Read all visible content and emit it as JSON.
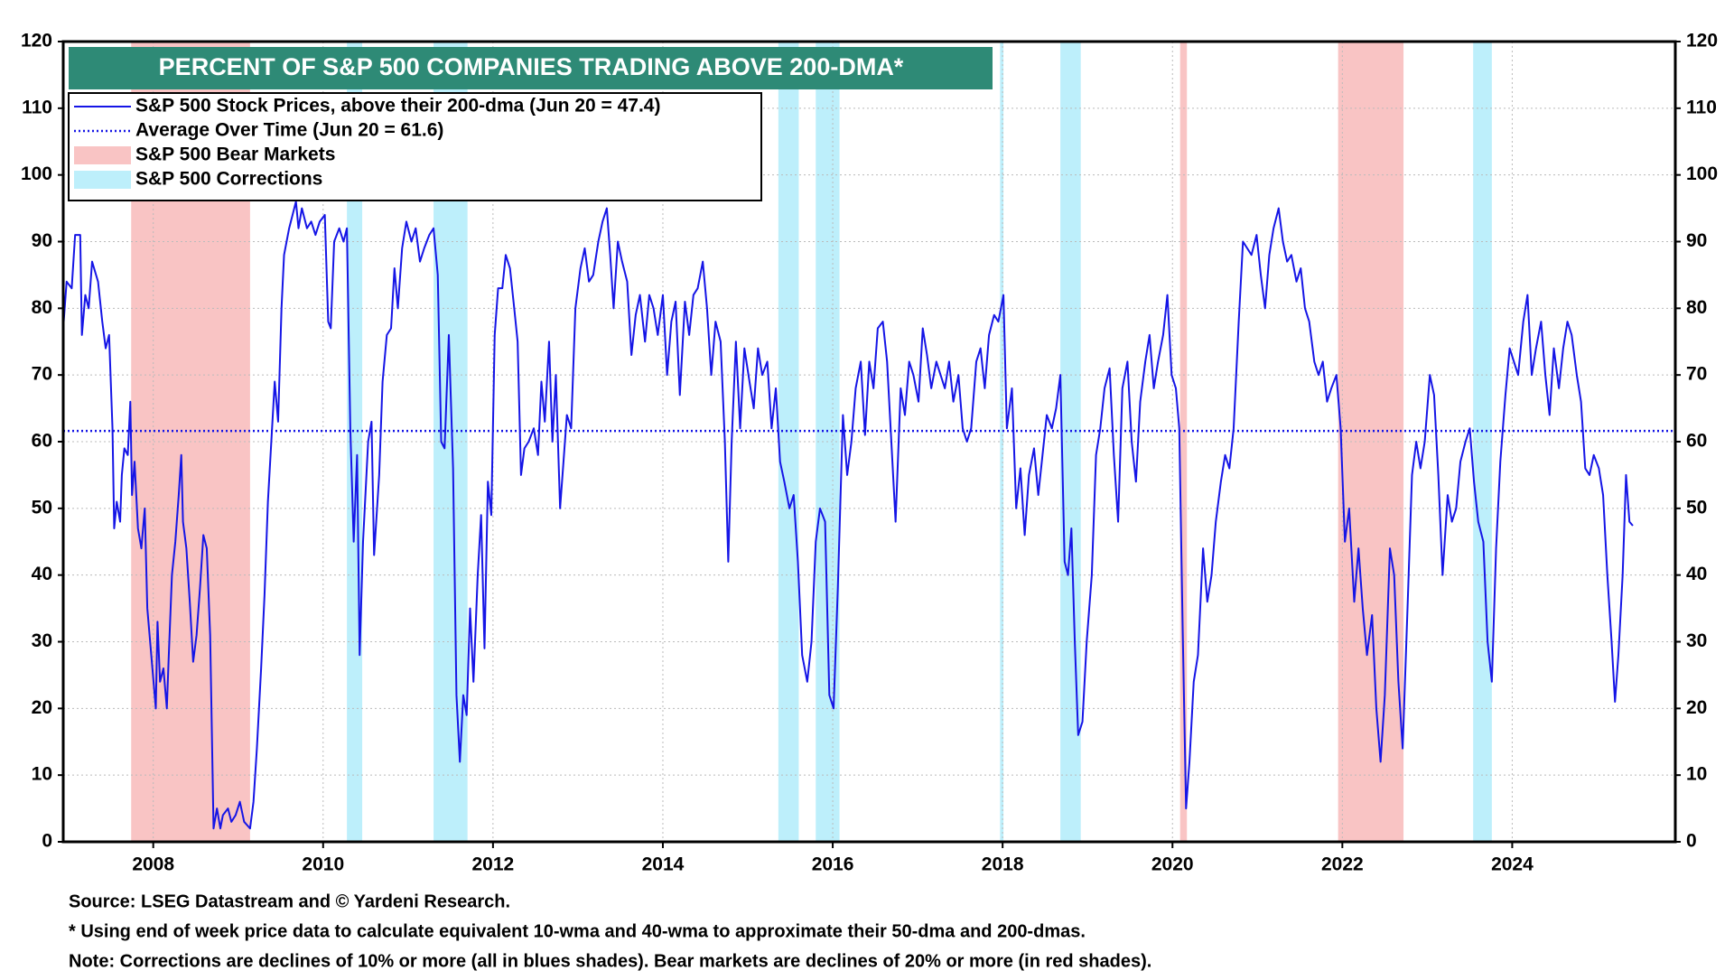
{
  "chart_data": {
    "type": "line",
    "title": "PERCENT OF S&P 500 COMPANIES TRADING ABOVE 200-DMA*",
    "x": [
      2006.94,
      2006.98,
      2007.04,
      2007.08,
      2007.14,
      2007.16,
      2007.2,
      2007.24,
      2007.28,
      2007.35,
      2007.4,
      2007.44,
      2007.48,
      2007.52,
      2007.54,
      2007.57,
      2007.61,
      2007.63,
      2007.66,
      2007.7,
      2007.73,
      2007.75,
      2007.78,
      2007.82,
      2007.86,
      2007.9,
      2007.93,
      2007.99,
      2008.03,
      2008.05,
      2008.08,
      2008.12,
      2008.16,
      2008.18,
      2008.22,
      2008.26,
      2008.3,
      2008.33,
      2008.35,
      2008.39,
      2008.43,
      2008.47,
      2008.51,
      2008.55,
      2008.59,
      2008.63,
      2008.67,
      2008.71,
      2008.75,
      2008.79,
      2008.82,
      2008.88,
      2008.92,
      2008.97,
      2009.02,
      2009.07,
      2009.14,
      2009.18,
      2009.22,
      2009.27,
      2009.31,
      2009.35,
      2009.39,
      2009.43,
      2009.47,
      2009.51,
      2009.54,
      2009.6,
      2009.64,
      2009.68,
      2009.71,
      2009.75,
      2009.81,
      2009.86,
      2009.91,
      2009.96,
      2010.02,
      2010.06,
      2010.09,
      2010.13,
      2010.19,
      2010.24,
      2010.28,
      2010.32,
      2010.36,
      2010.4,
      2010.43,
      2010.47,
      2010.53,
      2010.57,
      2010.6,
      2010.66,
      2010.7,
      2010.75,
      2010.8,
      2010.84,
      2010.88,
      2010.93,
      2010.98,
      2011.04,
      2011.09,
      2011.14,
      2011.19,
      2011.25,
      2011.3,
      2011.35,
      2011.39,
      2011.43,
      2011.48,
      2011.53,
      2011.57,
      2011.61,
      2011.65,
      2011.69,
      2011.73,
      2011.77,
      2011.82,
      2011.86,
      2011.9,
      2011.94,
      2011.98,
      2012.02,
      2012.06,
      2012.11,
      2012.15,
      2012.2,
      2012.25,
      2012.29,
      2012.33,
      2012.37,
      2012.42,
      2012.48,
      2012.53,
      2012.57,
      2012.61,
      2012.66,
      2012.7,
      2012.74,
      2012.79,
      2012.83,
      2012.87,
      2012.92,
      2012.97,
      2013.03,
      2013.08,
      2013.13,
      2013.18,
      2013.24,
      2013.29,
      2013.34,
      2013.38,
      2013.42,
      2013.47,
      2013.52,
      2013.58,
      2013.63,
      2013.68,
      2013.73,
      2013.79,
      2013.84,
      2013.89,
      2013.94,
      2014.0,
      2014.05,
      2014.1,
      2014.15,
      2014.2,
      2014.26,
      2014.31,
      2014.36,
      2014.41,
      2014.47,
      2014.52,
      2014.57,
      2014.62,
      2014.68,
      2014.73,
      2014.77,
      2014.81,
      2014.86,
      2014.91,
      2014.96,
      2015.02,
      2015.07,
      2015.12,
      2015.17,
      2015.23,
      2015.28,
      2015.33,
      2015.38,
      2015.43,
      2015.49,
      2015.54,
      2015.59,
      2015.64,
      2015.7,
      2015.75,
      2015.8,
      2015.85,
      2015.91,
      2015.96,
      2016.01,
      2016.06,
      2016.12,
      2016.17,
      2016.22,
      2016.27,
      2016.33,
      2016.38,
      2016.43,
      2016.48,
      2016.53,
      2016.59,
      2016.64,
      2016.69,
      2016.74,
      2016.8,
      2016.85,
      2016.9,
      2016.95,
      2017.01,
      2017.06,
      2017.11,
      2017.16,
      2017.22,
      2017.27,
      2017.32,
      2017.37,
      2017.42,
      2017.48,
      2017.53,
      2017.58,
      2017.63,
      2017.69,
      2017.74,
      2017.79,
      2017.84,
      2017.9,
      2017.95,
      2018.01,
      2018.05,
      2018.11,
      2018.16,
      2018.21,
      2018.26,
      2018.31,
      2018.37,
      2018.42,
      2018.47,
      2018.52,
      2018.58,
      2018.63,
      2018.68,
      2018.73,
      2018.77,
      2018.81,
      2018.85,
      2018.89,
      2018.94,
      2018.99,
      2019.05,
      2019.1,
      2019.15,
      2019.2,
      2019.26,
      2019.31,
      2019.36,
      2019.41,
      2019.47,
      2019.52,
      2019.57,
      2019.62,
      2019.68,
      2019.73,
      2019.78,
      2019.83,
      2019.89,
      2019.94,
      2019.99,
      2020.04,
      2020.08,
      2020.12,
      2020.16,
      2020.2,
      2020.25,
      2020.3,
      2020.36,
      2020.41,
      2020.46,
      2020.51,
      2020.57,
      2020.62,
      2020.67,
      2020.72,
      2020.78,
      2020.83,
      2020.88,
      2020.93,
      2020.99,
      2021.04,
      2021.09,
      2021.14,
      2021.19,
      2021.25,
      2021.3,
      2021.35,
      2021.4,
      2021.46,
      2021.51,
      2021.56,
      2021.61,
      2021.67,
      2021.72,
      2021.77,
      2021.82,
      2021.87,
      2021.93,
      2021.98,
      2022.03,
      2022.08,
      2022.14,
      2022.19,
      2022.24,
      2022.29,
      2022.35,
      2022.4,
      2022.45,
      2022.5,
      2022.56,
      2022.61,
      2022.66,
      2022.71,
      2022.77,
      2022.82,
      2022.87,
      2022.92,
      2022.97,
      2023.03,
      2023.08,
      2023.13,
      2023.18,
      2023.24,
      2023.29,
      2023.34,
      2023.39,
      2023.45,
      2023.5,
      2023.55,
      2023.6,
      2023.66,
      2023.71,
      2023.76,
      2023.81,
      2023.86,
      2023.92,
      2023.97,
      2024.02,
      2024.07,
      2024.13,
      2024.18,
      2024.23,
      2024.28,
      2024.34,
      2024.39,
      2024.44,
      2024.49,
      2024.55,
      2024.6,
      2024.65,
      2024.7,
      2024.76,
      2024.81,
      2024.86,
      2024.91,
      2024.96,
      2025.02,
      2025.07,
      2025.12,
      2025.17,
      2025.21,
      2025.25,
      2025.3,
      2025.34,
      2025.38,
      2025.42
    ],
    "series": [
      {
        "name": "S&P 500 Stock Prices, above their 200-dma (Jun 20 = 47.4)",
        "color": "#1515e6",
        "values": [
          77,
          84,
          83,
          91,
          91,
          76,
          82,
          80,
          87,
          84,
          78,
          74,
          76,
          62,
          47,
          51,
          48,
          55,
          59,
          58,
          66,
          52,
          57,
          47,
          44,
          50,
          35,
          26,
          20,
          33,
          24,
          26,
          20,
          27,
          40,
          45,
          52,
          58,
          48,
          44,
          36,
          27,
          31,
          38,
          46,
          44,
          31,
          2,
          5,
          2,
          4,
          5,
          3,
          4,
          6,
          3,
          2,
          6,
          14,
          26,
          37,
          51,
          60,
          69,
          63,
          80,
          88,
          92,
          94,
          96,
          92,
          95,
          92,
          93,
          91,
          93,
          94,
          78,
          77,
          90,
          92,
          90,
          92,
          62,
          45,
          58,
          28,
          45,
          60,
          63,
          43,
          55,
          69,
          76,
          77,
          86,
          80,
          89,
          93,
          90,
          92,
          87,
          89,
          91,
          92,
          85,
          60,
          59,
          76,
          56,
          22,
          12,
          22,
          19,
          35,
          24,
          40,
          49,
          29,
          54,
          49,
          76,
          83,
          83,
          88,
          86,
          80,
          75,
          55,
          59,
          60,
          62,
          58,
          69,
          63,
          75,
          60,
          70,
          50,
          57,
          64,
          62,
          80,
          86,
          89,
          84,
          85,
          90,
          93,
          95,
          88,
          80,
          90,
          87,
          84,
          73,
          79,
          82,
          75,
          82,
          80,
          76,
          82,
          70,
          78,
          81,
          67,
          81,
          76,
          82,
          83,
          87,
          80,
          70,
          78,
          75,
          60,
          42,
          60,
          75,
          62,
          74,
          69,
          65,
          74,
          70,
          72,
          62,
          68,
          57,
          54,
          50,
          52,
          42,
          28,
          24,
          30,
          45,
          50,
          48,
          22,
          20,
          38,
          64,
          55,
          60,
          68,
          72,
          61,
          72,
          68,
          77,
          78,
          72,
          60,
          48,
          68,
          64,
          72,
          70,
          66,
          77,
          73,
          68,
          72,
          70,
          68,
          72,
          66,
          70,
          62,
          60,
          62,
          72,
          74,
          68,
          76,
          79,
          78,
          82,
          62,
          68,
          50,
          56,
          46,
          55,
          59,
          52,
          58,
          64,
          62,
          65,
          70,
          42,
          40,
          47,
          30,
          16,
          18,
          30,
          40,
          58,
          62,
          68,
          71,
          58,
          48,
          68,
          72,
          60,
          54,
          66,
          72,
          76,
          68,
          72,
          76,
          82,
          70,
          68,
          62,
          32,
          5,
          12,
          24,
          28,
          44,
          36,
          40,
          48,
          54,
          58,
          56,
          62,
          78,
          90,
          89,
          88,
          91,
          85,
          80,
          88,
          92,
          95,
          90,
          87,
          88,
          84,
          86,
          80,
          78,
          72,
          70,
          72,
          66,
          68,
          70,
          62,
          45,
          50,
          36,
          44,
          35,
          28,
          34,
          20,
          12,
          22,
          44,
          40,
          24,
          14,
          36,
          55,
          60,
          56,
          60,
          70,
          67,
          55,
          40,
          52,
          48,
          50,
          57,
          60,
          62,
          54,
          48,
          45,
          30,
          24,
          44,
          57,
          67,
          74,
          72,
          70,
          78,
          82,
          70,
          74,
          78,
          70,
          64,
          74,
          68,
          74,
          78,
          76,
          70,
          66,
          56,
          55,
          58,
          56,
          52,
          40,
          30,
          21,
          28,
          40,
          55,
          48,
          47.4
        ]
      }
    ],
    "average": {
      "name": "Average Over Time (Jun 20 = 61.6)",
      "value": 61.6,
      "color": "#1515e6"
    },
    "bear_markets": {
      "name": "S&P 500 Bear Markets",
      "color": "#f9c4c4",
      "ranges": [
        [
          2007.74,
          2009.14
        ],
        [
          2020.09,
          2020.17
        ],
        [
          2021.95,
          2022.72
        ]
      ]
    },
    "corrections": {
      "name": "S&P 500 Corrections",
      "color": "#bdeffb",
      "ranges": [
        [
          2010.28,
          2010.46
        ],
        [
          2011.3,
          2011.7
        ],
        [
          2015.36,
          2015.6
        ],
        [
          2015.8,
          2016.08
        ],
        [
          2017.97,
          2018.01
        ],
        [
          2018.68,
          2018.92
        ],
        [
          2023.54,
          2023.76
        ]
      ]
    },
    "xlim": [
      2006.94,
      2025.92
    ],
    "xticks": [
      2008,
      2010,
      2012,
      2014,
      2016,
      2018,
      2020,
      2022,
      2024
    ],
    "ylim": [
      0,
      120
    ],
    "yticks": [
      0,
      10,
      20,
      30,
      40,
      50,
      60,
      70,
      80,
      90,
      100,
      110,
      120
    ],
    "y2lim": [
      0,
      120
    ],
    "y2ticks": [
      0,
      10,
      20,
      30,
      40,
      50,
      60,
      70,
      80,
      90,
      100,
      110,
      120
    ],
    "grid": true,
    "notes": [
      "Source: LSEG Datastream and © Yardeni Research.",
      "* Using end of week price data to calculate equivalent 10-wma and 40-wma to approximate their 50-dma and 200-dmas.",
      "Note: Corrections are declines of 10% or more (all in blues shades). Bear markets are declines of 20% or more (in red shades)."
    ]
  }
}
